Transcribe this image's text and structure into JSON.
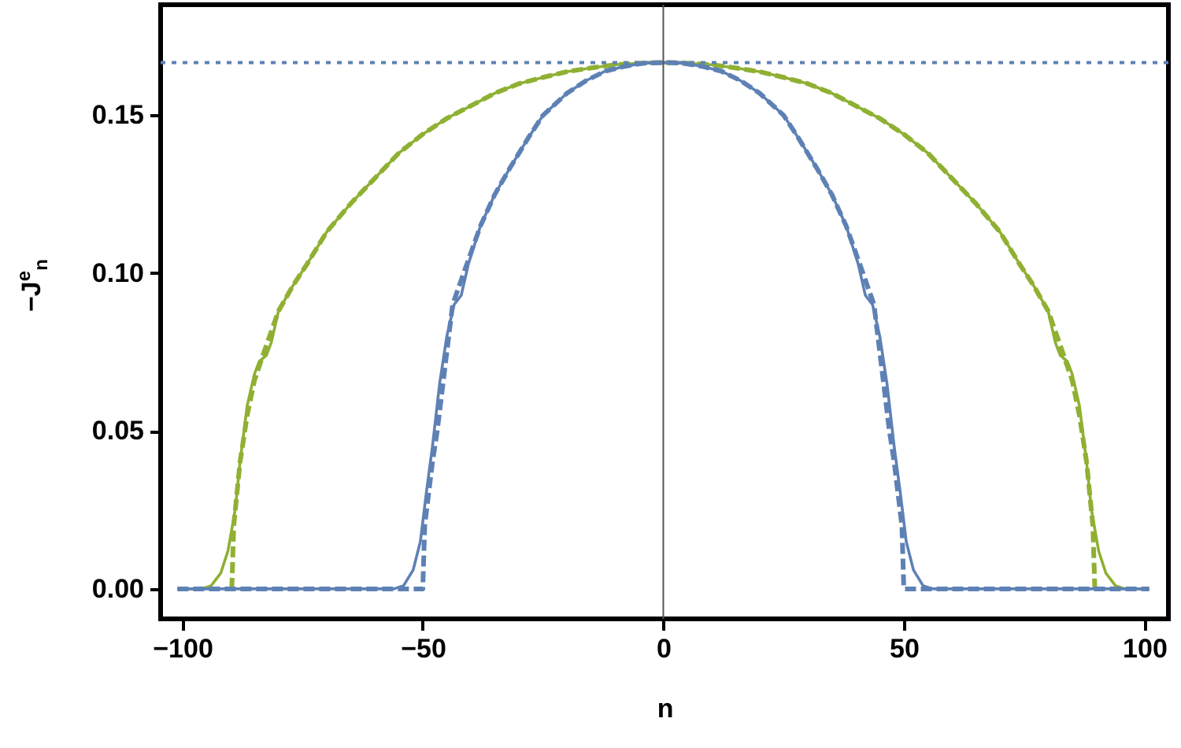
{
  "chart_data": {
    "type": "line",
    "xlabel": "n",
    "ylabel": "−J$^{e}$$_{n}$",
    "xlim": [
      -104.5,
      105
    ],
    "ylim": [
      -0.0095,
      0.185
    ],
    "xticks": [
      -100,
      -50,
      0,
      50,
      100
    ],
    "yticks": [
      {
        "value": 0,
        "label": "0.00"
      },
      {
        "value": 0.05,
        "label": "0.05"
      },
      {
        "value": 0.1,
        "label": "0.10"
      },
      {
        "value": 0.15,
        "label": "0.15"
      }
    ],
    "grid": false,
    "marker": "none",
    "ref_lines": [
      {
        "axis": "y",
        "value": 0.1667,
        "label": null,
        "color": "#5e81b5",
        "line_style": "dotted"
      },
      {
        "axis": "x",
        "value": 0,
        "label": null,
        "color": "#555555",
        "line_style": "solid"
      }
    ],
    "series": [
      {
        "color": "#8fb032",
        "line_style": "solid",
        "x": [
          -101,
          -96,
          -94,
          -92,
          -90.5,
          -89,
          -88,
          -86.5,
          -85,
          -84,
          -82.5,
          -81.5,
          -80,
          -77,
          -74,
          -70,
          -65,
          -60,
          -55,
          -50,
          -45,
          -40,
          -35,
          -30,
          -25,
          -20,
          -15,
          -10,
          -5,
          0,
          5,
          10,
          15,
          20,
          25,
          30,
          35,
          40,
          45,
          50,
          55,
          60,
          65,
          70,
          74,
          77,
          80,
          81.5,
          82.5,
          84,
          85,
          86.5,
          88,
          89,
          90.5,
          92,
          94,
          96,
          101
        ],
        "values": [
          0,
          0,
          0.001,
          0.005,
          0.012,
          0.025,
          0.04,
          0.058,
          0.068,
          0.072,
          0.074,
          0.078,
          0.088,
          0.096,
          0.103,
          0.113,
          0.122,
          0.13,
          0.138,
          0.144,
          0.149,
          0.153,
          0.157,
          0.16,
          0.162,
          0.1638,
          0.165,
          0.166,
          0.1665,
          0.1667,
          0.1665,
          0.166,
          0.165,
          0.1638,
          0.162,
          0.16,
          0.157,
          0.153,
          0.149,
          0.144,
          0.138,
          0.13,
          0.122,
          0.113,
          0.103,
          0.096,
          0.088,
          0.078,
          0.074,
          0.072,
          0.068,
          0.058,
          0.04,
          0.025,
          0.012,
          0.005,
          0.001,
          0,
          0
        ]
      },
      {
        "color": "#8fb032",
        "line_style": "dashed",
        "x": [
          -89.7,
          -89.3,
          -88,
          -86.5,
          -85,
          -83,
          -80,
          -77,
          -74,
          -70,
          -65,
          -60,
          -55,
          -50,
          -45,
          -40,
          -35,
          -30,
          -25,
          -20,
          -15,
          -10,
          -5,
          0,
          5,
          10,
          15,
          20,
          25,
          30,
          35,
          40,
          45,
          50,
          55,
          60,
          65,
          70,
          74,
          77,
          80,
          83,
          85,
          86.5,
          88,
          89.3,
          89.7
        ],
        "values": [
          0,
          0.02,
          0.04,
          0.055,
          0.066,
          0.075,
          0.088,
          0.096,
          0.103,
          0.113,
          0.122,
          0.13,
          0.138,
          0.144,
          0.149,
          0.153,
          0.157,
          0.16,
          0.162,
          0.1638,
          0.165,
          0.166,
          0.1665,
          0.1667,
          0.1665,
          0.166,
          0.165,
          0.1638,
          0.162,
          0.16,
          0.157,
          0.153,
          0.149,
          0.144,
          0.138,
          0.13,
          0.122,
          0.113,
          0.103,
          0.096,
          0.088,
          0.075,
          0.066,
          0.055,
          0.04,
          0.02,
          0
        ]
      },
      {
        "color": "#5e81b5",
        "line_style": "solid",
        "x": [
          -101,
          -56,
          -54,
          -52,
          -50.5,
          -49.3,
          -48,
          -46.5,
          -45,
          -43.5,
          -42,
          -40.5,
          -38,
          -35,
          -32,
          -28,
          -25,
          -20,
          -16,
          -12,
          -8,
          -4,
          0,
          4,
          8,
          12,
          16,
          20,
          25,
          28,
          32,
          35,
          38,
          40.5,
          42,
          43.5,
          45,
          46.5,
          48,
          49.3,
          50.5,
          52,
          54,
          56,
          101
        ],
        "values": [
          0,
          0,
          0.001,
          0.006,
          0.015,
          0.03,
          0.045,
          0.065,
          0.08,
          0.09,
          0.093,
          0.103,
          0.115,
          0.125,
          0.133,
          0.143,
          0.15,
          0.157,
          0.161,
          0.164,
          0.1655,
          0.1665,
          0.1667,
          0.1665,
          0.1655,
          0.164,
          0.161,
          0.157,
          0.15,
          0.143,
          0.133,
          0.125,
          0.115,
          0.103,
          0.093,
          0.09,
          0.08,
          0.065,
          0.045,
          0.03,
          0.015,
          0.006,
          0.001,
          0,
          0
        ]
      },
      {
        "color": "#5e81b5",
        "line_style": "dashed",
        "x": [
          -101,
          -50,
          -49.6,
          -48,
          -47,
          -45,
          -43.8,
          -41.5,
          -38,
          -35,
          -32,
          -28,
          -25,
          -20,
          -16,
          -12,
          -8,
          -4,
          0,
          4,
          8,
          12,
          16,
          20,
          25,
          28,
          32,
          35,
          38,
          41.5,
          43.8,
          45,
          47,
          48,
          49.6,
          50,
          101
        ],
        "values": [
          0,
          0,
          0.02,
          0.04,
          0.05,
          0.075,
          0.09,
          0.1,
          0.115,
          0.125,
          0.133,
          0.143,
          0.15,
          0.157,
          0.161,
          0.164,
          0.1655,
          0.1665,
          0.1667,
          0.1665,
          0.1655,
          0.164,
          0.161,
          0.157,
          0.15,
          0.143,
          0.133,
          0.125,
          0.115,
          0.1,
          0.09,
          0.075,
          0.05,
          0.04,
          0.02,
          0,
          0
        ]
      }
    ]
  }
}
